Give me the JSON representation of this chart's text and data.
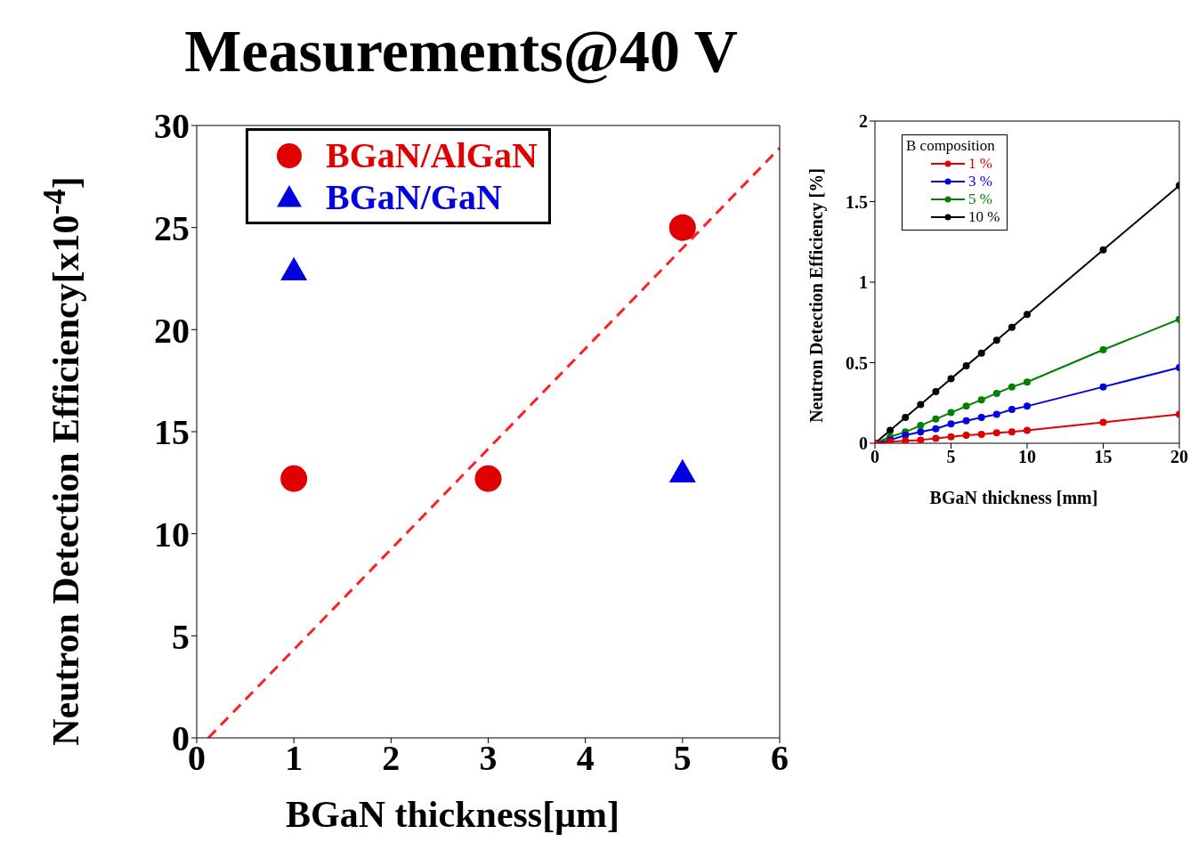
{
  "chart_data": [
    {
      "type": "scatter",
      "title": "Measurements@40 V",
      "xlabel": "BGaN thickness[μm]",
      "ylabel": "Neutron Detection Efficiency[x10$^{-4}$]",
      "xlim": [
        0,
        6
      ],
      "xticks": [
        0,
        1,
        2,
        3,
        4,
        5,
        6
      ],
      "ylim": [
        0,
        30
      ],
      "yticks": [
        0,
        5,
        10,
        15,
        20,
        25,
        30
      ],
      "legend": "top left",
      "series": [
        {
          "name": "BGaN/AlGaN",
          "color": "#e00000",
          "marker": "circle",
          "x": [
            1,
            3,
            5
          ],
          "values": [
            12.7,
            12.7,
            25.0
          ]
        },
        {
          "name": "BGaN/GaN",
          "color": "#0000e0",
          "marker": "triangle",
          "x": [
            1,
            5
          ],
          "values": [
            22.9,
            13.0
          ]
        },
        {
          "type": "line",
          "color": "#ff2020",
          "line_style": "dashed",
          "x": [
            0.12,
            6
          ],
          "values": [
            0,
            28.9
          ]
        }
      ]
    },
    {
      "type": "line",
      "xlabel": "BGaN thickness [mm]",
      "ylabel": "Neutron Detection Efficiency [%]",
      "xlim": [
        0,
        20
      ],
      "xticks": [
        0,
        5,
        10,
        15,
        20
      ],
      "ylim": [
        0,
        2
      ],
      "yticks": [
        0,
        0.5,
        1,
        1.5,
        2
      ],
      "legend_title": "B composition",
      "legend": "top left",
      "marker": "circle",
      "x": [
        0,
        1,
        2,
        3,
        4,
        5,
        6,
        7,
        8,
        9,
        10,
        15,
        20
      ],
      "series": [
        {
          "name": "1 %",
          "color": "#e00000",
          "values": [
            0,
            0.01,
            0.015,
            0.02,
            0.03,
            0.04,
            0.05,
            0.055,
            0.065,
            0.07,
            0.08,
            0.13,
            0.18
          ]
        },
        {
          "name": "3 %",
          "color": "#0000e0",
          "values": [
            0,
            0.02,
            0.05,
            0.07,
            0.09,
            0.12,
            0.14,
            0.16,
            0.18,
            0.21,
            0.23,
            0.35,
            0.47
          ]
        },
        {
          "name": "5 %",
          "color": "#008000",
          "values": [
            0,
            0.04,
            0.07,
            0.11,
            0.15,
            0.19,
            0.23,
            0.27,
            0.31,
            0.35,
            0.38,
            0.58,
            0.77
          ]
        },
        {
          "name": "10 %",
          "color": "#000000",
          "values": [
            0,
            0.08,
            0.16,
            0.24,
            0.32,
            0.4,
            0.48,
            0.56,
            0.64,
            0.72,
            0.8,
            1.2,
            1.6
          ]
        }
      ]
    }
  ]
}
